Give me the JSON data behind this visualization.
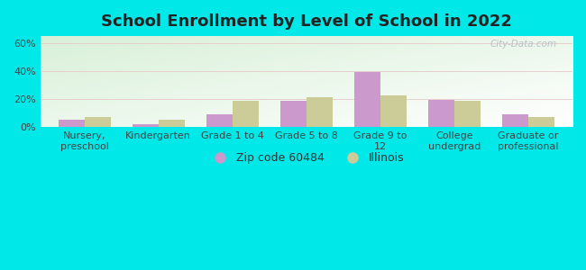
{
  "title": "School Enrollment by Level of School in 2022",
  "categories": [
    "Nursery,\npreschool",
    "Kindergarten",
    "Grade 1 to 4",
    "Grade 5 to 8",
    "Grade 9 to\n12",
    "College\nundergrad",
    "Graduate or\nprofessional"
  ],
  "zip_values": [
    5.5,
    2.0,
    9.0,
    18.5,
    39.5,
    19.5,
    9.0
  ],
  "il_values": [
    7.0,
    5.5,
    19.0,
    21.0,
    22.5,
    19.0,
    7.0
  ],
  "zip_color": "#cc99cc",
  "il_color": "#cccc99",
  "zip_label": "Zip code 60484",
  "il_label": "Illinois",
  "ylim": [
    0,
    65
  ],
  "yticks": [
    0,
    20,
    40,
    60
  ],
  "ytick_labels": [
    "0%",
    "20%",
    "40%",
    "60%"
  ],
  "bg_outer": "#00e8e8",
  "bg_plot_topleft": "#d8f0d8",
  "bg_plot_bottomright": "#ffffff",
  "watermark": "City-Data.com",
  "title_fontsize": 13,
  "axis_fontsize": 8,
  "legend_fontsize": 9,
  "bar_width": 0.35
}
